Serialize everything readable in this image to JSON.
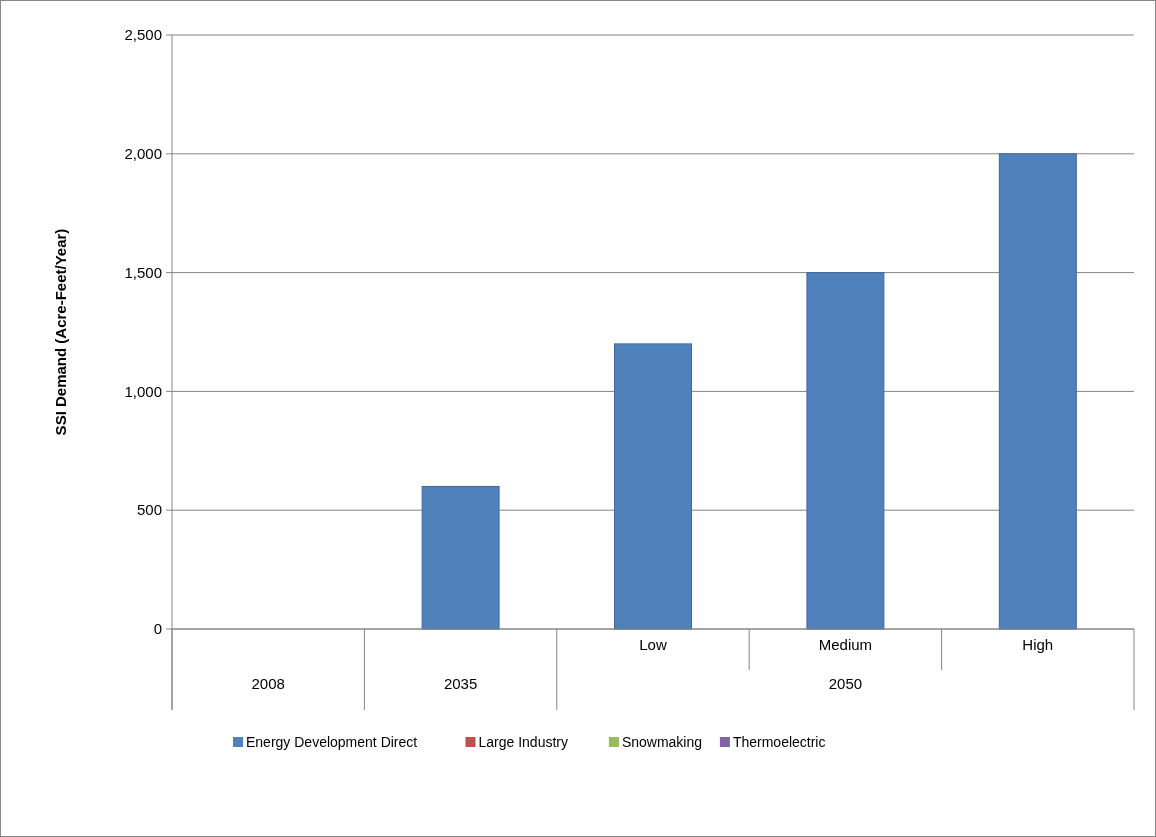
{
  "chart_data": {
    "type": "bar",
    "stacked": true,
    "ylabel": "SSI Demand (Acre-Feet/Year)",
    "categories": [
      null,
      null,
      "Low",
      "Medium",
      "High"
    ],
    "annotations": [
      "2008",
      "2035",
      "2050"
    ],
    "series": [
      {
        "name": "Energy Development Direct",
        "color": "#4f81bd",
        "values": [
          0,
          600,
          1200,
          1500,
          2000
        ]
      },
      {
        "name": "Large Industry",
        "color": "#c0504d",
        "values": [
          0,
          0,
          0,
          0,
          0
        ]
      },
      {
        "name": "Snowmaking",
        "color": "#9bbb59",
        "values": [
          0,
          0,
          0,
          0,
          0
        ]
      },
      {
        "name": "Thermoelectric",
        "color": "#8064a2",
        "values": [
          0,
          0,
          0,
          0,
          0
        ]
      }
    ],
    "ylim": [
      0,
      2500
    ],
    "yticks": [
      {
        "value": 0,
        "label": "0"
      },
      {
        "value": 500,
        "label": "500"
      },
      {
        "value": 1000,
        "label": "1,000"
      },
      {
        "value": 1500,
        "label": "1,500"
      },
      {
        "value": 2000,
        "label": "2,000"
      },
      {
        "value": 2500,
        "label": "2,500"
      }
    ],
    "grid": "y",
    "legend": "bottom"
  }
}
